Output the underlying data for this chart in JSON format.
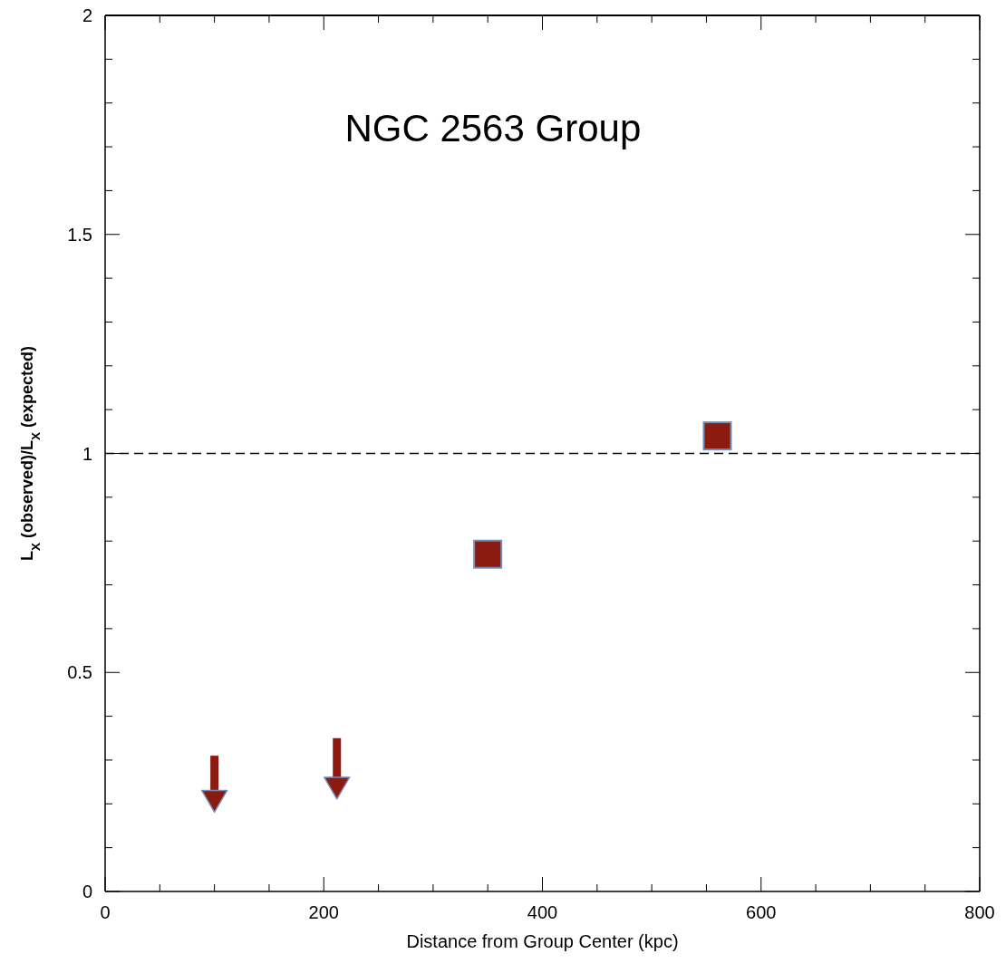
{
  "chart_data": {
    "type": "scatter",
    "title": "NGC 2563 Group",
    "xlabel": "Distance from Group Center (kpc)",
    "ylabel": "L$_{X}$ (observed)/L$_{X}$ (expected)",
    "xlim": [
      0,
      800
    ],
    "ylim": [
      0,
      2
    ],
    "xticks": [
      0,
      {
        "value": 50,
        "label": null
      },
      {
        "value": 100,
        "label": null
      },
      {
        "value": 150,
        "label": null
      },
      200,
      {
        "value": 250,
        "label": null
      },
      {
        "value": 300,
        "label": null
      },
      {
        "value": 350,
        "label": null
      },
      400,
      {
        "value": 450,
        "label": null
      },
      {
        "value": 500,
        "label": null
      },
      {
        "value": 550,
        "label": null
      },
      600,
      {
        "value": 650,
        "label": null
      },
      {
        "value": 700,
        "label": null
      },
      {
        "value": 750,
        "label": null
      },
      800
    ],
    "yticks": [
      0,
      {
        "value": 0.1,
        "label": null
      },
      {
        "value": 0.2,
        "label": null
      },
      {
        "value": 0.3,
        "label": null
      },
      {
        "value": 0.4,
        "label": null
      },
      0.5,
      {
        "value": 0.6,
        "label": null
      },
      {
        "value": 0.7,
        "label": null
      },
      {
        "value": 0.8,
        "label": null
      },
      {
        "value": 0.9,
        "label": null
      },
      1,
      {
        "value": 1.1,
        "label": null
      },
      {
        "value": 1.2,
        "label": null
      },
      {
        "value": 1.3,
        "label": null
      },
      {
        "value": 1.4,
        "label": null
      },
      1.5,
      {
        "value": 1.6,
        "label": null
      },
      {
        "value": 1.7,
        "label": null
      },
      {
        "value": 1.8,
        "label": null
      },
      {
        "value": 1.9,
        "label": null
      },
      2
    ],
    "series": [
      {
        "color": "#8b1a10",
        "marker": "square",
        "x": [
          350,
          560
        ],
        "values": [
          0.77,
          1.04
        ]
      },
      {
        "color": "#8b1a10",
        "marker": "triangle",
        "x": [
          100,
          212
        ],
        "values": [
          0.21,
          0.24
        ],
        "errors": [
          [
            0.21,
            0.31
          ],
          [
            0.24,
            0.35
          ]
        ]
      }
    ],
    "ref_lines": [
      {
        "axis": "y",
        "value": 1,
        "color": "#000000",
        "line_style": "dashed"
      }
    ],
    "legend": false
  }
}
